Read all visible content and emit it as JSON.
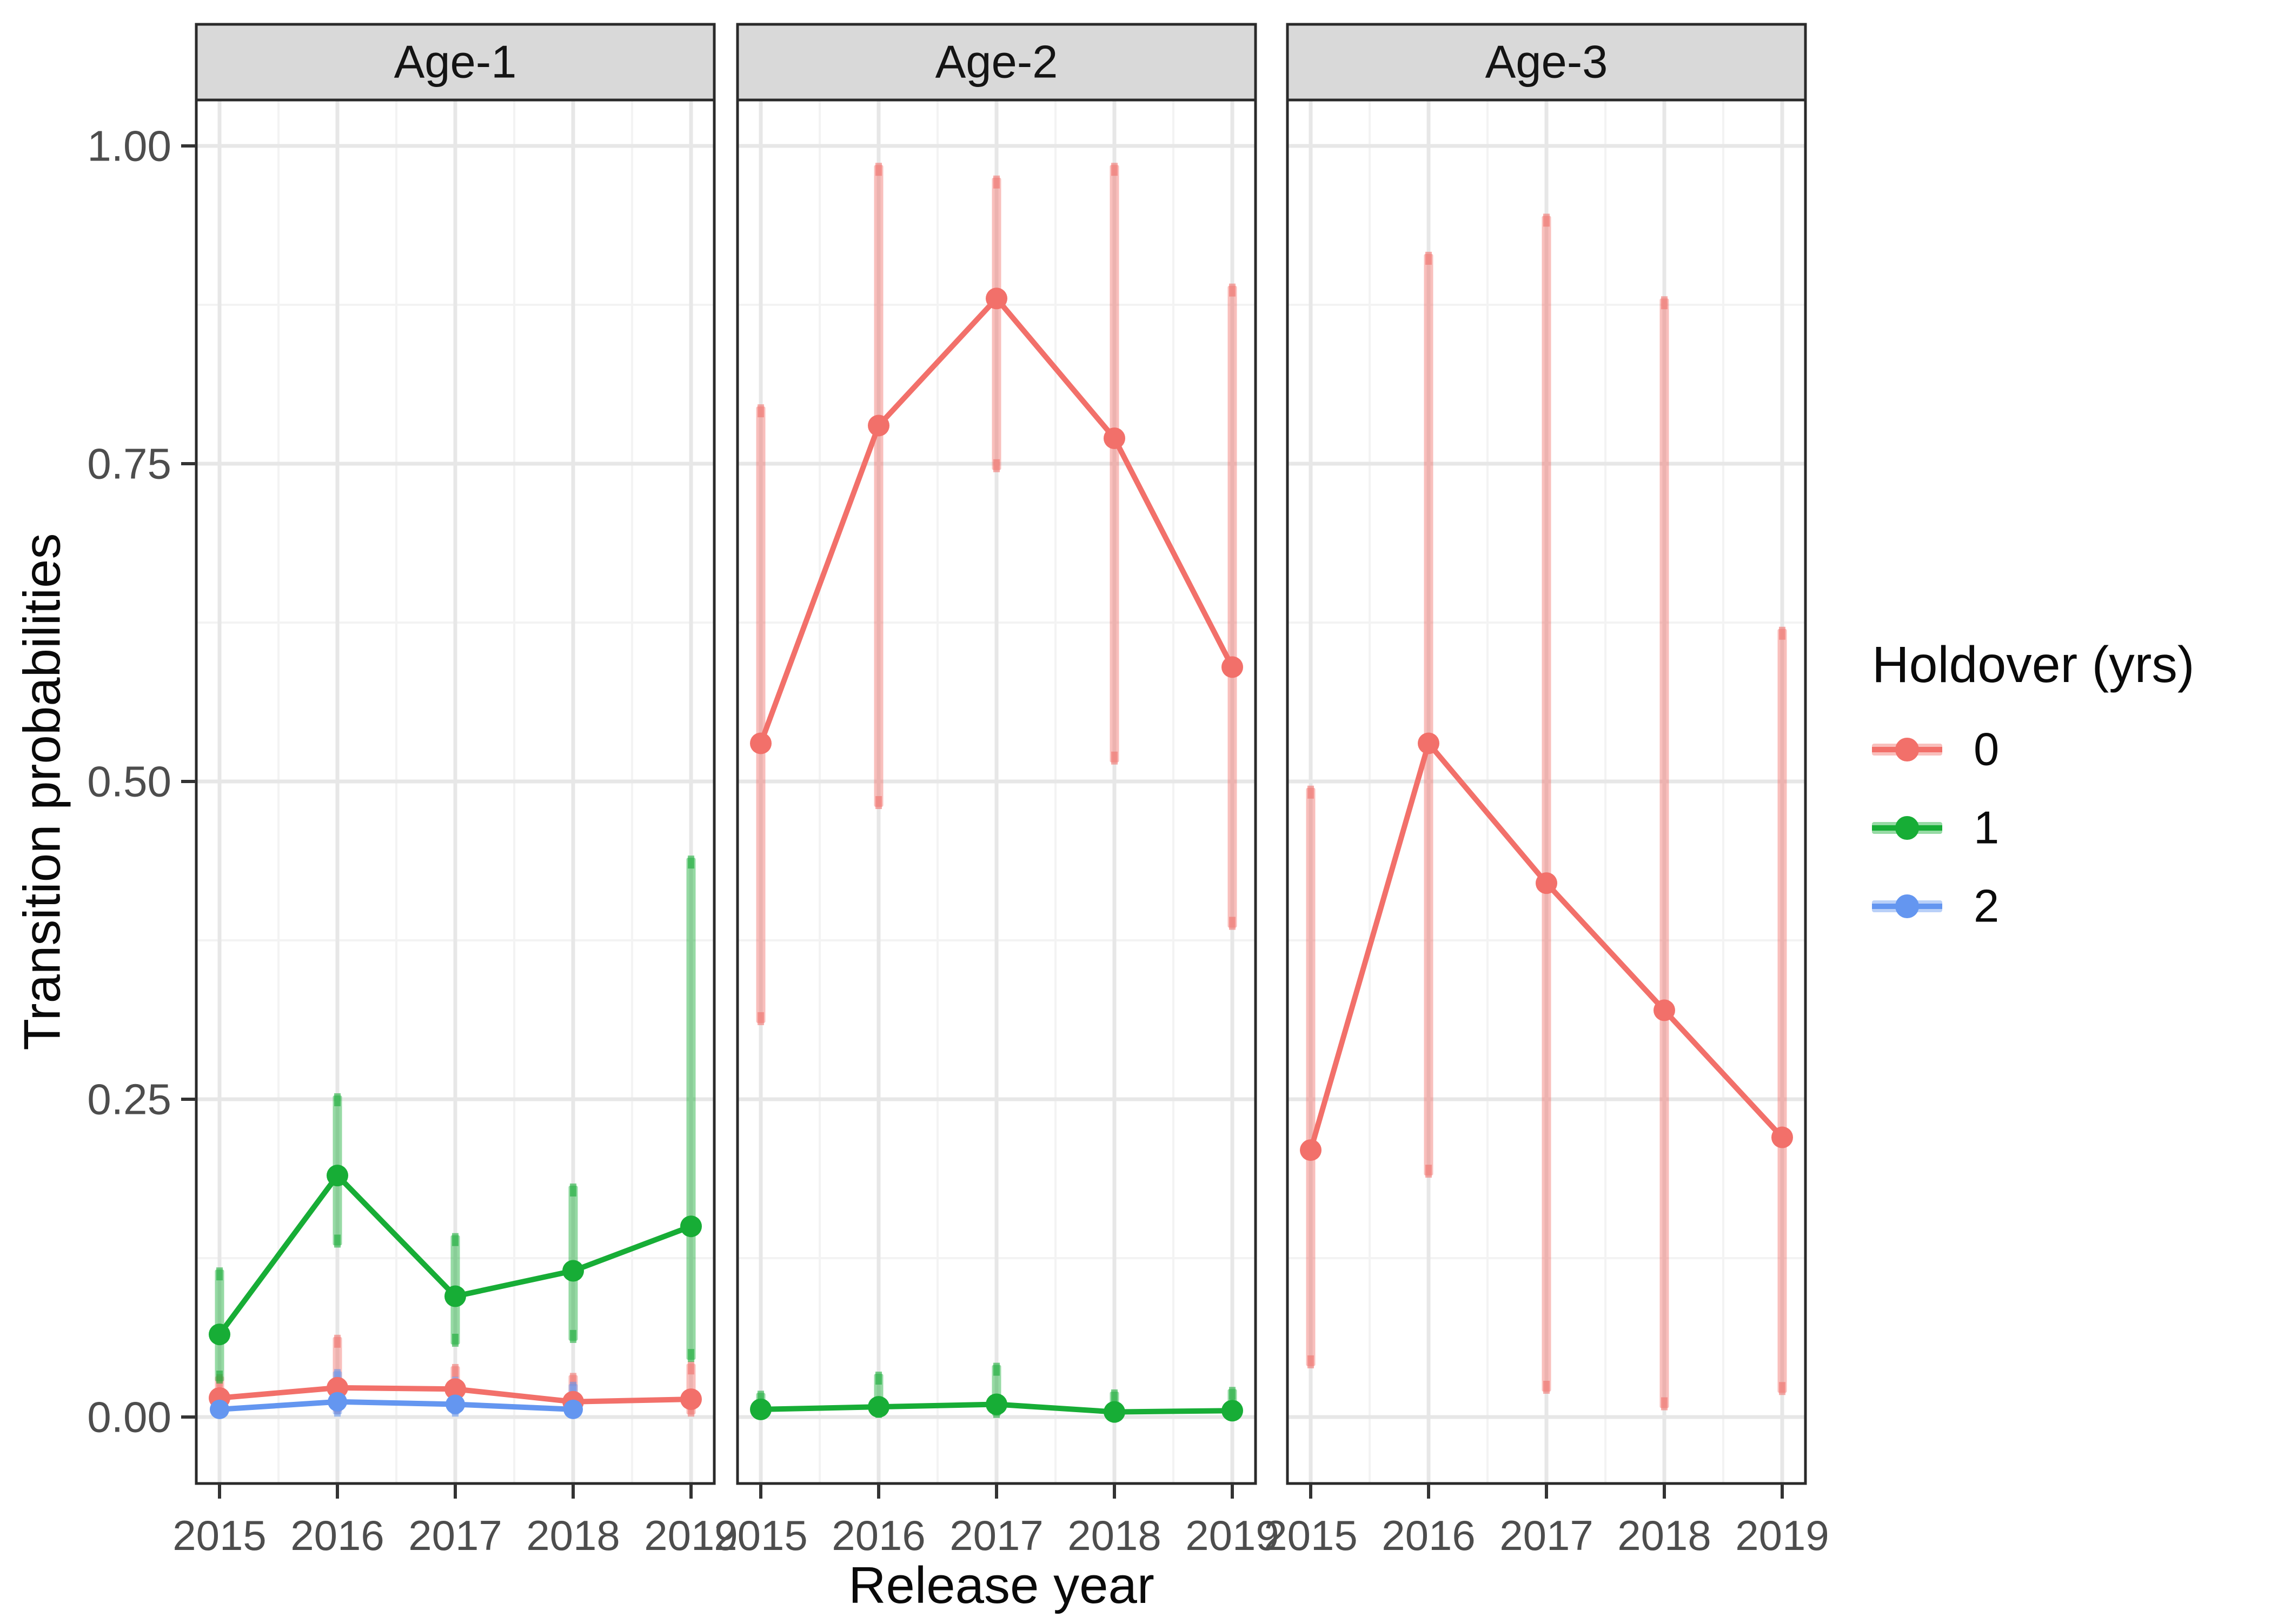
{
  "chart_data": {
    "type": "line",
    "title": "",
    "xlabel": "Release year",
    "ylabel": "Transition probabilities",
    "x": [
      2015,
      2016,
      2017,
      2018,
      2019
    ],
    "x_tick_labels": [
      "2015",
      "2016",
      "2017",
      "2018",
      "2019"
    ],
    "y_ticks": [
      {
        "value": 1.0,
        "label": "1.00"
      },
      {
        "value": 0.75,
        "label": "0.75"
      },
      {
        "value": 0.5,
        "label": "0.50"
      },
      {
        "value": 0.25,
        "label": "0.25"
      },
      {
        "value": 0.0,
        "label": "0.00"
      }
    ],
    "y_minor_ticks": [
      0.125,
      0.375,
      0.625,
      0.875
    ],
    "ylim": [
      0,
      1
    ],
    "grid": "major+minor",
    "legend": {
      "title": "Holdover (yrs)",
      "position": "right",
      "entries": [
        {
          "label": "0",
          "color": "#F2706A"
        },
        {
          "label": "1",
          "color": "#17AD36"
        },
        {
          "label": "2",
          "color": "#6496F0"
        }
      ]
    },
    "facets": [
      {
        "label": "Age-1",
        "series": [
          {
            "name": "0",
            "color": "#F2706A",
            "values": [
              0.015,
              0.023,
              0.022,
              0.012,
              0.014
            ],
            "ci_low": [
              0.003,
              0.004,
              0.004,
              0.002,
              0.002
            ],
            "ci_high": [
              0.032,
              0.063,
              0.04,
              0.033,
              0.042
            ]
          },
          {
            "name": "1",
            "color": "#17AD36",
            "values": [
              0.065,
              0.19,
              0.095,
              0.115,
              0.15
            ],
            "ci_low": [
              0.028,
              0.135,
              0.057,
              0.06,
              0.045
            ],
            "ci_high": [
              0.116,
              0.253,
              0.143,
              0.182,
              0.44
            ]
          },
          {
            "name": "2",
            "color": "#6496F0",
            "values": [
              0.006,
              0.012,
              0.01,
              0.006,
              null
            ],
            "ci_low": [
              0.001,
              0.002,
              0.002,
              0.001,
              null
            ],
            "ci_high": [
              0.015,
              0.036,
              0.03,
              0.026,
              null
            ]
          }
        ]
      },
      {
        "label": "Age-2",
        "series": [
          {
            "name": "0",
            "color": "#F2706A",
            "values": [
              0.53,
              0.78,
              0.88,
              0.77,
              0.59
            ],
            "ci_low": [
              0.31,
              0.48,
              0.745,
              0.515,
              0.385
            ],
            "ci_high": [
              0.795,
              0.985,
              0.975,
              0.985,
              0.89
            ]
          },
          {
            "name": "1",
            "color": "#17AD36",
            "values": [
              0.006,
              0.008,
              0.01,
              0.004,
              0.005
            ],
            "ci_low": [
              0.0,
              0.001,
              0.001,
              0.0,
              0.0
            ],
            "ci_high": [
              0.019,
              0.034,
              0.041,
              0.02,
              0.022
            ]
          }
        ]
      },
      {
        "label": "Age-3",
        "series": [
          {
            "name": "0",
            "color": "#F2706A",
            "values": [
              0.21,
              0.53,
              0.42,
              0.32,
              0.22
            ],
            "ci_low": [
              0.04,
              0.19,
              0.02,
              0.007,
              0.019
            ],
            "ci_high": [
              0.495,
              0.915,
              0.945,
              0.88,
              0.62
            ]
          }
        ]
      }
    ],
    "style_colors": {
      "strip_fill": "#D9D9D9",
      "strip_text": "#141414",
      "panel_border": "#2A2A2A",
      "grid_major": "#E7E7E7",
      "grid_minor": "#F3F3F3",
      "tick_text": "#4D4D4D",
      "axis_title_text": "#0A0A0A",
      "tick_mark": "#333333"
    }
  }
}
